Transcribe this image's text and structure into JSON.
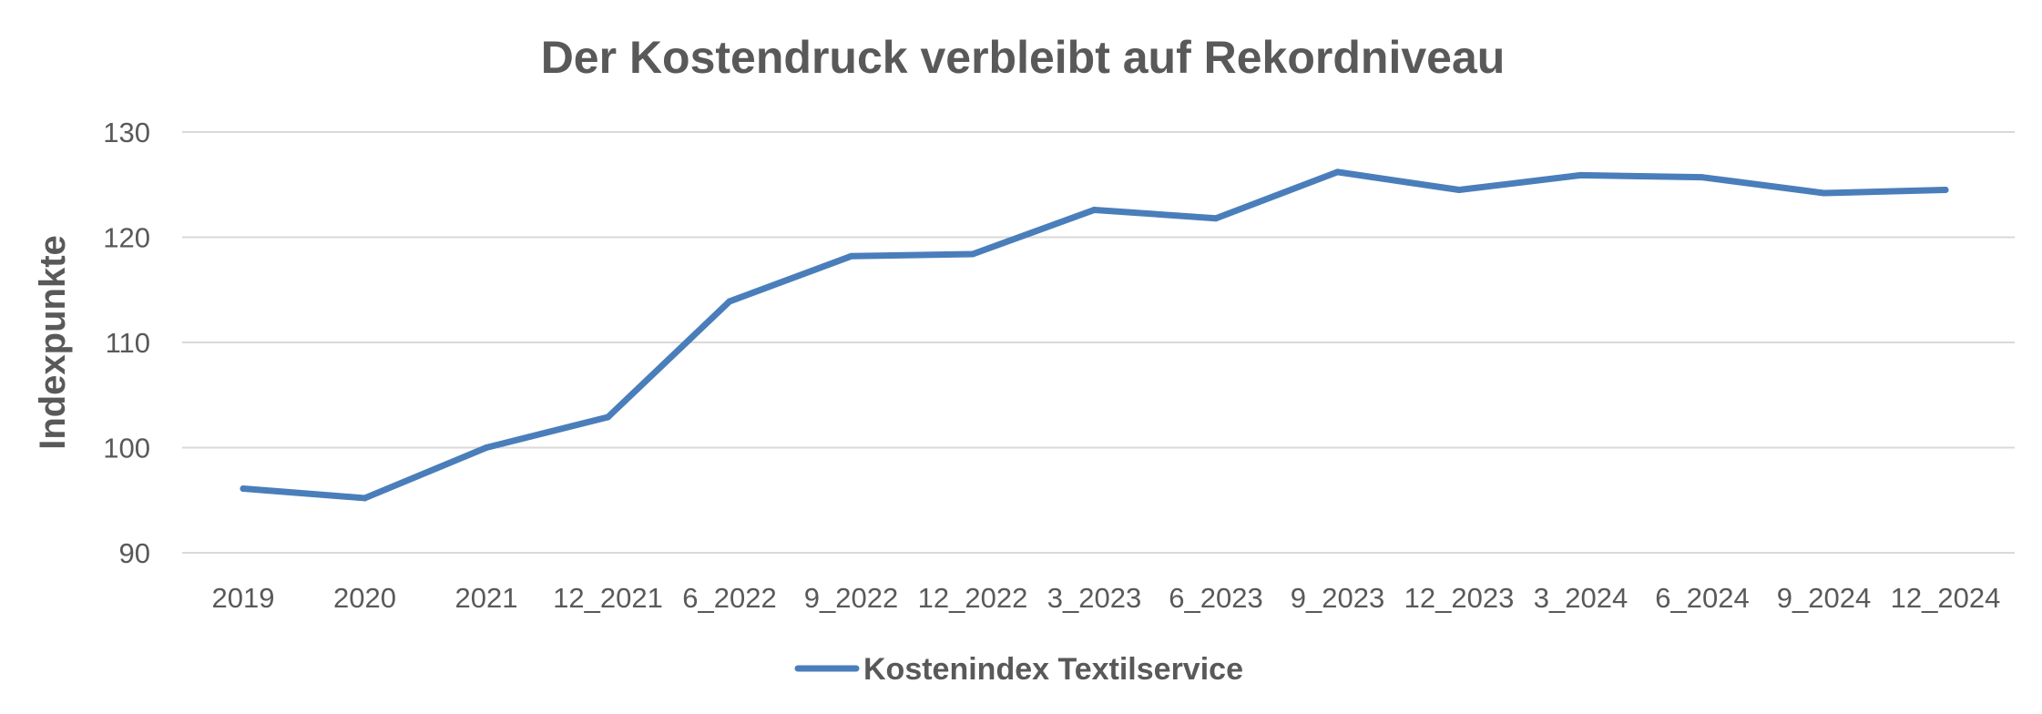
{
  "chart_data": {
    "type": "line",
    "title": "Der Kostendruck verbleibt auf Rekordniveau",
    "xlabel": "",
    "ylabel": "Indexpunkte",
    "categories": [
      "2019",
      "2020",
      "2021",
      "12_2021",
      "6_2022",
      "9_2022",
      "12_2022",
      "3_2023",
      "6_2023",
      "9_2023",
      "12_2023",
      "3_2024",
      "6_2024",
      "9_2024",
      "12_2024"
    ],
    "series": [
      {
        "name": "Kostenindex Textilservice",
        "color": "#4a7ebb",
        "values": [
          96.1,
          95.2,
          100.0,
          102.9,
          113.9,
          118.2,
          118.4,
          122.6,
          121.8,
          126.2,
          124.5,
          125.9,
          125.7,
          124.2,
          124.5
        ]
      }
    ],
    "yticks": [
      "90",
      "100",
      "110",
      "120",
      "130"
    ],
    "ylim": [
      90,
      130
    ],
    "grid": true,
    "legend_position": "bottom"
  }
}
